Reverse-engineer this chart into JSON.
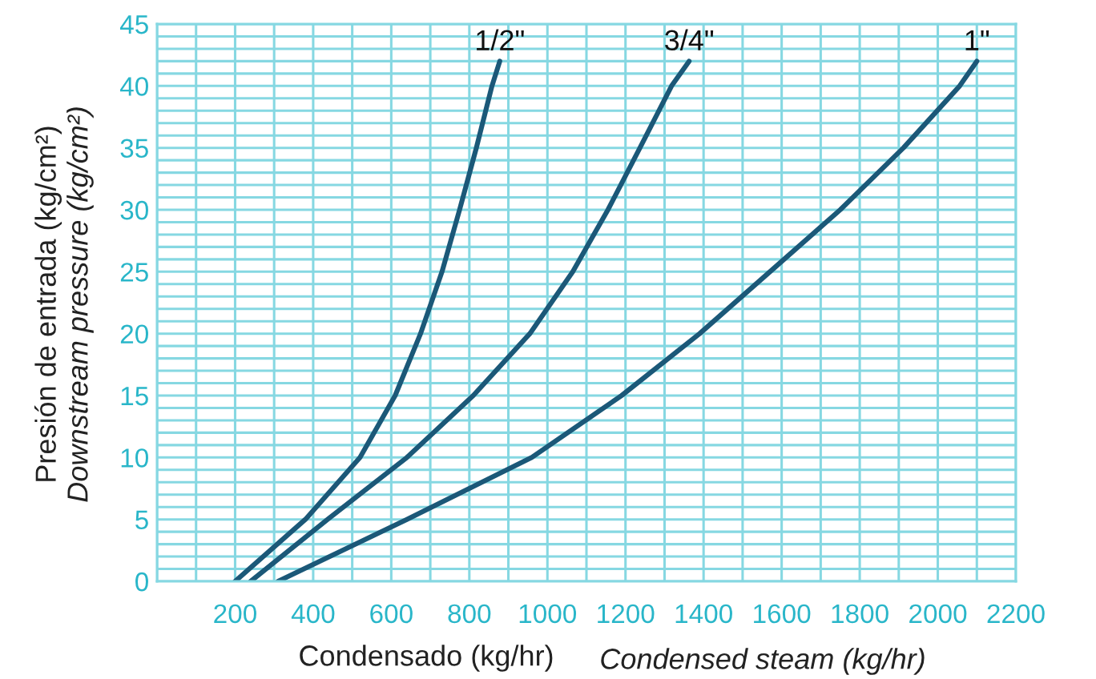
{
  "chart_data": {
    "type": "line",
    "xlabel": "Condensado (kg/hr)",
    "ylabel": "Presión de entrada (kg/cm²)",
    "annotations": [
      "Downstream pressure (kg/cm²)",
      "Condensed steam (kg/hr)"
    ],
    "series": [
      {
        "name": "1/2\"",
        "color": "#1b5878",
        "x": [
          200,
          380,
          520,
          610,
          675,
          730,
          775,
          818,
          858,
          878
        ],
        "values": [
          0,
          5,
          10,
          15,
          20,
          25,
          30,
          35,
          40,
          42
        ]
      },
      {
        "name": "3/4\"",
        "color": "#1b5878",
        "x": [
          240,
          437,
          640,
          810,
          955,
          1065,
          1155,
          1237,
          1318,
          1363
        ],
        "values": [
          0,
          5,
          10,
          15,
          20,
          25,
          30,
          35,
          40,
          42
        ]
      },
      {
        "name": "1\"",
        "color": "#1b5878",
        "x": [
          310,
          640,
          960,
          1190,
          1390,
          1570,
          1750,
          1912,
          2056,
          2100
        ],
        "values": [
          0,
          5,
          10,
          15,
          20,
          25,
          30,
          35,
          40,
          42
        ]
      }
    ],
    "xlim": [
      0,
      2200
    ],
    "xticks": [
      200,
      400,
      600,
      800,
      1000,
      1200,
      1400,
      1600,
      1800,
      2000,
      2200
    ],
    "ylim": [
      0,
      45
    ],
    "yticks": [
      0,
      5,
      10,
      15,
      20,
      25,
      30,
      35,
      40,
      45
    ],
    "grid": true,
    "legend": false,
    "marker": "none",
    "line_style": "solid"
  }
}
